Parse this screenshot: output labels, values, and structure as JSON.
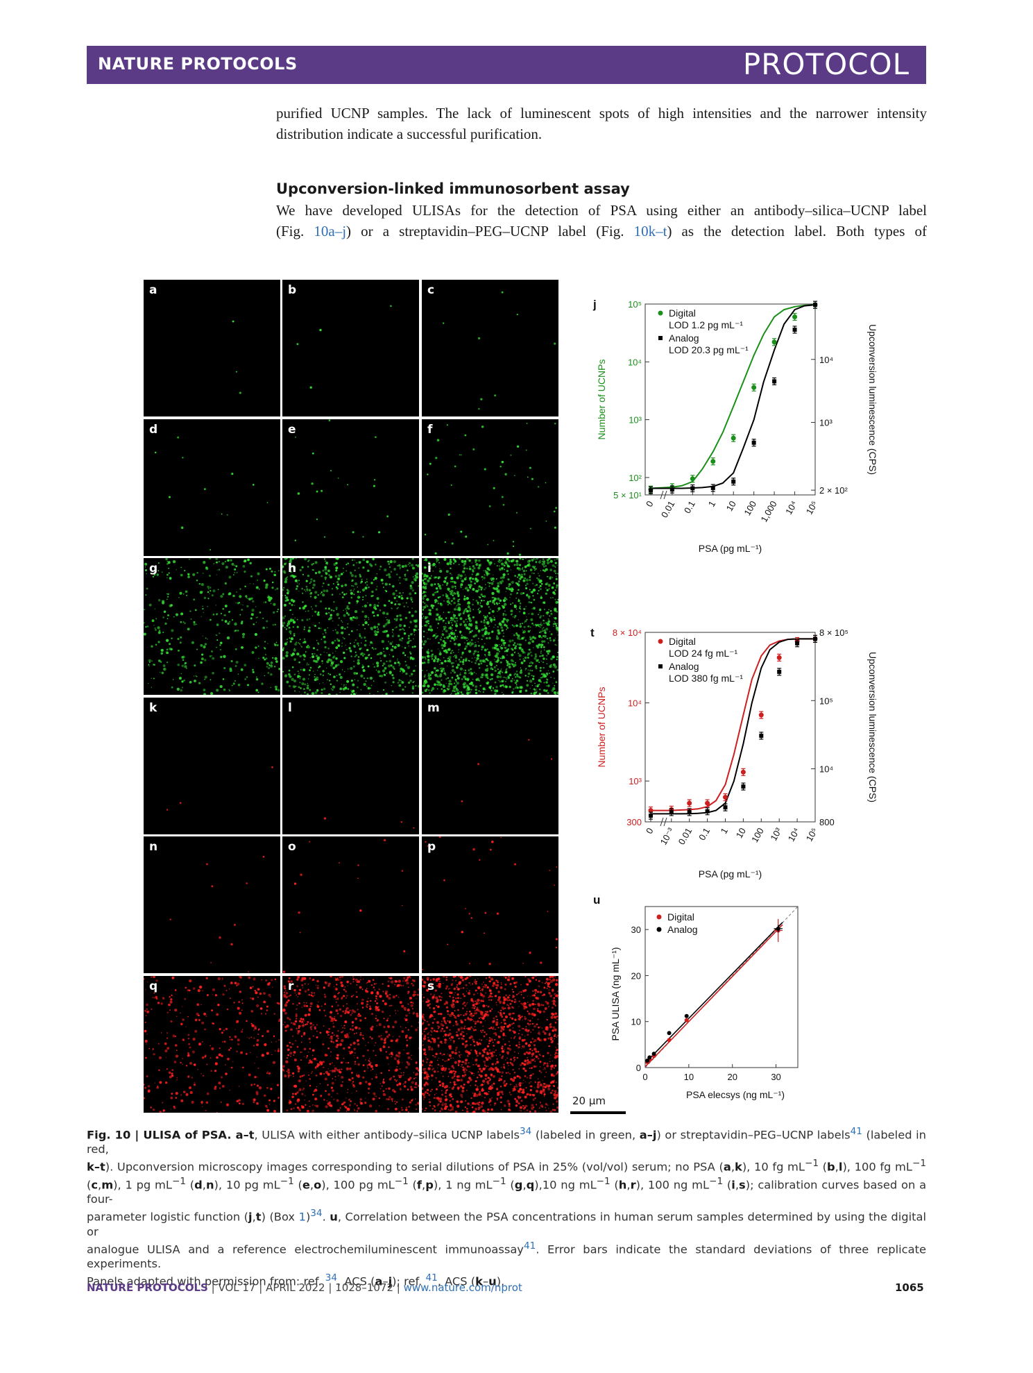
{
  "header": {
    "journal": "NATURE PROTOCOLS",
    "section": "PROTOCOL"
  },
  "intro": {
    "lines": [
      "purified UCNP samples. The lack of luminescent spots of high intensities and the narrower intensity",
      "distribution indicate a successful purification."
    ]
  },
  "section": {
    "heading": "Upconversion-linked immunosorbent assay",
    "line1": "We have developed ULISAs for the detection of PSA using either an antibody–silica–UCNP label",
    "line2_a": "(Fig. ",
    "line2_link1": "10a–j",
    "line2_b": ") or a streptavidin–PEG–UCNP label (Fig. ",
    "line2_link2": "10k–t",
    "line2_c": ") as the detection label. Both types of"
  },
  "micrographs": {
    "panels": [
      {
        "label": "a",
        "color": "#33dd33",
        "density": 3
      },
      {
        "label": "b",
        "color": "#33dd33",
        "density": 4
      },
      {
        "label": "c",
        "color": "#33dd33",
        "density": 8
      },
      {
        "label": "d",
        "color": "#33dd33",
        "density": 12
      },
      {
        "label": "e",
        "color": "#33dd33",
        "density": 20
      },
      {
        "label": "f",
        "color": "#33dd33",
        "density": 50
      },
      {
        "label": "g",
        "color": "#33dd33",
        "density": 400
      },
      {
        "label": "h",
        "color": "#33dd33",
        "density": 900
      },
      {
        "label": "i",
        "color": "#33dd33",
        "density": 1600
      },
      {
        "label": "k",
        "color": "#ff2020",
        "density": 3
      },
      {
        "label": "l",
        "color": "#ff2020",
        "density": 3
      },
      {
        "label": "m",
        "color": "#ff2020",
        "density": 4
      },
      {
        "label": "n",
        "color": "#ff2020",
        "density": 10
      },
      {
        "label": "o",
        "color": "#ff2020",
        "density": 14
      },
      {
        "label": "p",
        "color": "#ff2020",
        "density": 30
      },
      {
        "label": "q",
        "color": "#ff2020",
        "density": 350
      },
      {
        "label": "r",
        "color": "#ff2020",
        "density": 900
      },
      {
        "label": "s",
        "color": "#ff2020",
        "density": 1500
      }
    ],
    "scale_bar": "20 μm"
  },
  "chart_data": [
    {
      "panel_label": "j",
      "type": "line",
      "xlabel": "PSA (pg mL⁻¹)",
      "ylabel": "Number of UCNPs",
      "ylabel_right": "Upconversion luminescence (CPS)",
      "x_scale": "log",
      "y_scale": "log",
      "x_ticks": [
        "0",
        "0.01",
        "0.1",
        "1",
        "10",
        "100",
        "1,000",
        "10⁴",
        "10⁵"
      ],
      "y_ticks": [
        "5 × 10¹",
        "10²",
        "10³",
        "10⁴",
        "10⁵"
      ],
      "y_right_ticks": [
        "2 × 10²",
        "10³",
        "10⁴"
      ],
      "ylim": [
        50,
        100000
      ],
      "xlim": [
        0.005,
        100000
      ],
      "legend": [
        {
          "name": "Digital",
          "sub": "LOD 1.2 pg mL⁻¹",
          "color": "#1a8f1a",
          "marker": "circle"
        },
        {
          "name": "Analog",
          "sub": "LOD 20.3 pg mL⁻¹",
          "color": "#000000",
          "marker": "square"
        }
      ],
      "series": [
        {
          "name": "Digital",
          "color": "#1a8f1a",
          "x": [
            0,
            0.01,
            0.03,
            0.1,
            0.3,
            1,
            3,
            10,
            30,
            100,
            300,
            1000,
            3000,
            10000,
            30000,
            100000
          ],
          "y": [
            65,
            68,
            72,
            85,
            140,
            280,
            600,
            1700,
            4500,
            13000,
            30000,
            60000,
            80000,
            90000,
            95000,
            97000
          ]
        },
        {
          "name": "Analog",
          "color": "#000000",
          "x": [
            0,
            0.01,
            0.03,
            0.1,
            0.3,
            1,
            3,
            10,
            30,
            100,
            300,
            1000,
            3000,
            10000,
            30000,
            100000
          ],
          "y": [
            65,
            65,
            65,
            66,
            67,
            70,
            80,
            120,
            320,
            1000,
            4500,
            16000,
            45000,
            80000,
            93000,
            97000
          ]
        }
      ],
      "points": [
        {
          "series": "Digital",
          "x": 0,
          "y": 62
        },
        {
          "series": "Digital",
          "x": 0.01,
          "y": 68
        },
        {
          "series": "Digital",
          "x": 0.1,
          "y": 95
        },
        {
          "series": "Digital",
          "x": 1,
          "y": 190
        },
        {
          "series": "Digital",
          "x": 10,
          "y": 480
        },
        {
          "series": "Digital",
          "x": 100,
          "y": 3600
        },
        {
          "series": "Digital",
          "x": 1000,
          "y": 22000
        },
        {
          "series": "Digital",
          "x": 10000,
          "y": 60000
        },
        {
          "series": "Digital",
          "x": 100000,
          "y": 97000
        },
        {
          "series": "Analog",
          "x": 0,
          "y": 60
        },
        {
          "series": "Analog",
          "x": 0.01,
          "y": 62
        },
        {
          "series": "Analog",
          "x": 0.1,
          "y": 65
        },
        {
          "series": "Analog",
          "x": 1,
          "y": 66
        },
        {
          "series": "Analog",
          "x": 10,
          "y": 85
        },
        {
          "series": "Analog",
          "x": 100,
          "y": 400
        },
        {
          "series": "Analog",
          "x": 1000,
          "y": 4600
        },
        {
          "series": "Analog",
          "x": 10000,
          "y": 36000
        },
        {
          "series": "Analog",
          "x": 100000,
          "y": 97000
        }
      ]
    },
    {
      "panel_label": "t",
      "type": "line",
      "xlabel": "PSA (pg mL⁻¹)",
      "ylabel": "Number of UCNPs",
      "ylabel_right": "Upconversion luminescence (CPS)",
      "x_scale": "log",
      "y_scale": "log",
      "x_ticks": [
        "0",
        "10⁻³",
        "0.01",
        "0.1",
        "1",
        "10",
        "100",
        "10³",
        "10⁴",
        "10⁵"
      ],
      "y_ticks": [
        "300",
        "10³",
        "10⁴",
        "8 × 10⁴"
      ],
      "y_right_ticks": [
        "800",
        "10⁴",
        "10⁵",
        "8 × 10⁵"
      ],
      "ylim": [
        300,
        80000
      ],
      "xlim": [
        0.0005,
        100000
      ],
      "legend": [
        {
          "name": "Digital",
          "sub": "LOD 24 fg mL⁻¹",
          "color": "#cc1f1f",
          "marker": "circle"
        },
        {
          "name": "Analog",
          "sub": "LOD 380 fg mL⁻¹",
          "color": "#000000",
          "marker": "square"
        }
      ],
      "series": [
        {
          "name": "Digital",
          "color": "#cc1f1f",
          "x": [
            0,
            0.001,
            0.003,
            0.01,
            0.03,
            0.1,
            0.3,
            1,
            3,
            10,
            30,
            100,
            300,
            1000,
            3000,
            10000,
            100000
          ],
          "y": [
            420,
            420,
            425,
            430,
            440,
            470,
            560,
            900,
            2200,
            7000,
            20000,
            40000,
            55000,
            62000,
            65000,
            66000,
            66000
          ]
        },
        {
          "name": "Analog",
          "color": "#000000",
          "x": [
            0,
            0.001,
            0.003,
            0.01,
            0.03,
            0.1,
            0.3,
            1,
            3,
            10,
            30,
            100,
            300,
            1000,
            3000,
            10000,
            100000
          ],
          "y": [
            380,
            380,
            380,
            382,
            385,
            395,
            420,
            520,
            1000,
            3000,
            10000,
            28000,
            48000,
            60000,
            65000,
            66000,
            66000
          ]
        }
      ],
      "points": [
        {
          "series": "Digital",
          "x": 0,
          "y": 420
        },
        {
          "series": "Digital",
          "x": 0.001,
          "y": 430
        },
        {
          "series": "Digital",
          "x": 0.01,
          "y": 520
        },
        {
          "series": "Digital",
          "x": 0.1,
          "y": 520
        },
        {
          "series": "Digital",
          "x": 1,
          "y": 620
        },
        {
          "series": "Digital",
          "x": 10,
          "y": 1300
        },
        {
          "series": "Digital",
          "x": 100,
          "y": 7000
        },
        {
          "series": "Digital",
          "x": 1000,
          "y": 38000
        },
        {
          "series": "Digital",
          "x": 10000,
          "y": 62000
        },
        {
          "series": "Digital",
          "x": 100000,
          "y": 66000
        },
        {
          "series": "Analog",
          "x": 0,
          "y": 360
        },
        {
          "series": "Analog",
          "x": 0.001,
          "y": 400
        },
        {
          "series": "Analog",
          "x": 0.01,
          "y": 400
        },
        {
          "series": "Analog",
          "x": 0.1,
          "y": 410
        },
        {
          "series": "Analog",
          "x": 1,
          "y": 460
        },
        {
          "series": "Analog",
          "x": 10,
          "y": 850
        },
        {
          "series": "Analog",
          "x": 100,
          "y": 3800
        },
        {
          "series": "Analog",
          "x": 1000,
          "y": 25000
        },
        {
          "series": "Analog",
          "x": 10000,
          "y": 58000
        },
        {
          "series": "Analog",
          "x": 100000,
          "y": 66000
        }
      ]
    },
    {
      "panel_label": "u",
      "type": "scatter",
      "xlabel": "PSA elecsys (ng mL⁻¹)",
      "ylabel": "PSA ULISA (ng mL⁻¹)",
      "x_ticks": [
        "0",
        "10",
        "20",
        "30"
      ],
      "y_ticks": [
        "0",
        "10",
        "20",
        "30"
      ],
      "xlim": [
        0,
        35
      ],
      "ylim": [
        0,
        35
      ],
      "legend": [
        {
          "name": "Digital",
          "color": "#cc1f1f",
          "marker": "circle"
        },
        {
          "name": "Analog",
          "color": "#000000",
          "marker": "circle"
        }
      ],
      "series": [
        {
          "name": "Digital",
          "color": "#cc1f1f",
          "points": [
            [
              0.5,
              1.2
            ],
            [
              1.0,
              1.8
            ],
            [
              2.0,
              2.5
            ],
            [
              5.5,
              6.0
            ],
            [
              9.5,
              10.3
            ],
            [
              30.5,
              29.8
            ]
          ]
        },
        {
          "name": "Analog",
          "color": "#000000",
          "points": [
            [
              0.5,
              1.5
            ],
            [
              1.0,
              2.2
            ],
            [
              2.0,
              3.0
            ],
            [
              5.5,
              7.5
            ],
            [
              9.5,
              11.2
            ],
            [
              30.5,
              30.2
            ]
          ]
        }
      ],
      "fit_lines": [
        {
          "series": "Digital",
          "slope": 0.98,
          "intercept": 0.2
        },
        {
          "series": "Analog",
          "slope": 0.97,
          "intercept": 1.0
        }
      ],
      "identity_line": true
    }
  ],
  "caption": {
    "lines": [
      "<b>Fig. 10 | ULISA of PSA. a–t</b>, ULISA with either antibody–silica UCNP labels<sup class=\"link\">34</sup> (labeled in green, <b>a–j</b>) or streptavidin–PEG–UCNP labels<sup class=\"link\">41</sup> (labeled in red,",
      "<b>k–t</b>). Upconversion microscopy images corresponding to serial dilutions of PSA in 25% (vol/vol) serum; no PSA (<b>a</b>,<b>k</b>), 10 fg mL<sup>−1</sup> (<b>b</b>,<b>l</b>), 100 fg mL<sup>−1</sup>",
      "(<b>c</b>,<b>m</b>), 1 pg mL<sup>−1</sup> (<b>d</b>,<b>n</b>), 10 pg mL<sup>−1</sup> (<b>e</b>,<b>o</b>), 100 pg mL<sup>−1</sup> (<b>f</b>,<b>p</b>), 1 ng mL<sup>−1</sup> (<b>g</b>,<b>q</b>),10 ng mL<sup>−1</sup> (<b>h</b>,<b>r</b>), 100 ng mL<sup>−1</sup> (<b>i</b>,<b>s</b>); calibration curves based on a four-",
      "parameter logistic function (<b>j</b>,<b>t</b>) (Box <span class=\"link\">1</span>)<sup class=\"link\">34</sup>. <b>u</b>, Correlation between the PSA concentrations in human serum samples determined by using the digital or",
      "analogue ULISA and a reference electrochemiluminescent immunoassay<sup class=\"link\">41</sup>. Error bars indicate the standard deviations of three replicate experiments.",
      "Panels adapted with permission from: ref. <sup class=\"link\">34</sup>, ACS (<b>a</b>–<b>j</b>); ref. <sup class=\"link\">41</sup>, ACS (<b>k</b>–<b>u</b>)."
    ]
  },
  "footer": {
    "journal": "NATURE PROTOCOLS",
    "volume": "VOL 17",
    "issue": "APRIL 2022",
    "pages": "1028–1072",
    "url": "www.nature.com/nprot",
    "page_number": "1065"
  }
}
